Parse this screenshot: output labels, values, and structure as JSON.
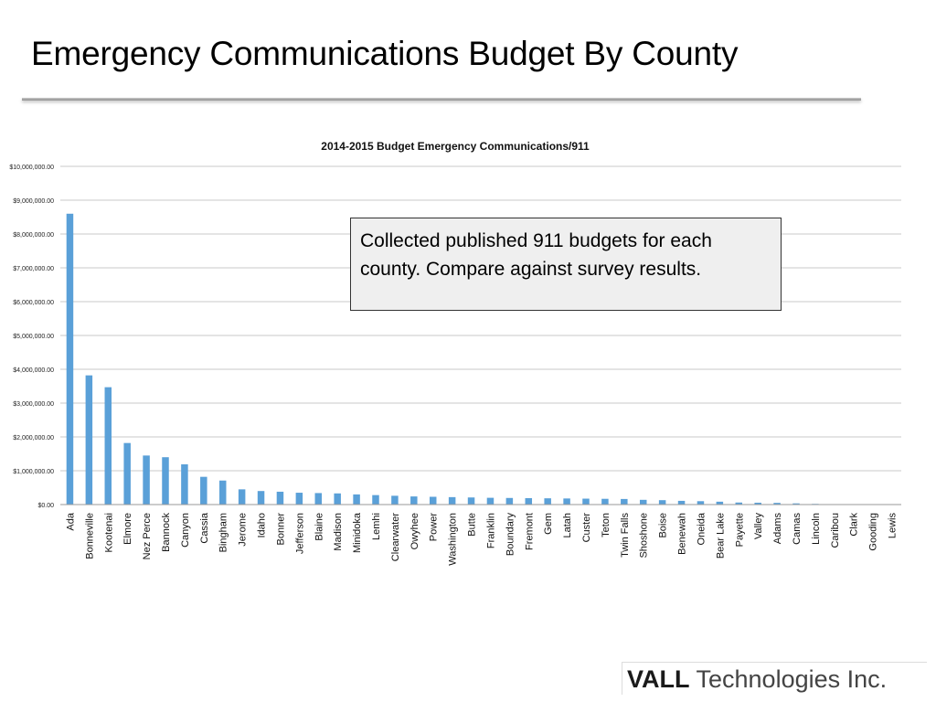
{
  "slide": {
    "title": "Emergency Communications Budget By County",
    "callout": "Collected published 911 budgets for each county. Compare against survey results.",
    "logo_bold": "VALL",
    "logo_rest": " Technologies Inc."
  },
  "colors": {
    "bar": "#5aa0d8",
    "grid": "#c8c8c8",
    "axis": "#9a9a9a"
  },
  "chart_data": {
    "type": "bar",
    "title": "2014-2015 Budget Emergency Communications/911",
    "xlabel": "",
    "ylabel": "",
    "ylim": [
      0,
      10000000
    ],
    "grid": true,
    "yticks": [
      {
        "value": 0,
        "label": "$0.00"
      },
      {
        "value": 1000000,
        "label": "$1,000,000.00"
      },
      {
        "value": 2000000,
        "label": "$2,000,000.00"
      },
      {
        "value": 3000000,
        "label": "$3,000,000.00"
      },
      {
        "value": 4000000,
        "label": "$4,000,000.00"
      },
      {
        "value": 5000000,
        "label": "$5,000,000.00"
      },
      {
        "value": 6000000,
        "label": "$6,000,000.00"
      },
      {
        "value": 7000000,
        "label": "$7,000,000.00"
      },
      {
        "value": 8000000,
        "label": "$8,000,000.00"
      },
      {
        "value": 9000000,
        "label": "$9,000,000.00"
      },
      {
        "value": 10000000,
        "label": "$10,000,000.00"
      }
    ],
    "categories": [
      "Ada",
      "Bonneville",
      "Kootenai",
      "Elmore",
      "Nez Perce",
      "Bannock",
      "Canyon",
      "Cassia",
      "Bingham",
      "Jerome",
      "Idaho",
      "Bonner",
      "Jefferson",
      "Blaine",
      "Madison",
      "Minidoka",
      "Lemhi",
      "Clearwater",
      "Owyhee",
      "Power",
      "Washington",
      "Butte",
      "Franklin",
      "Boundary",
      "Fremont",
      "Gem",
      "Latah",
      "Custer",
      "Teton",
      "Twin Falls",
      "Shoshone",
      "Boise",
      "Benewah",
      "Oneida",
      "Bear Lake",
      "Payette",
      "Valley",
      "Adams",
      "Camas",
      "Lincoln",
      "Caribou",
      "Clark",
      "Gooding",
      "Lewis"
    ],
    "values": [
      8600000,
      3820000,
      3470000,
      1820000,
      1450000,
      1400000,
      1190000,
      820000,
      710000,
      450000,
      400000,
      380000,
      350000,
      340000,
      330000,
      300000,
      280000,
      260000,
      240000,
      230000,
      220000,
      210000,
      200000,
      195000,
      190000,
      185000,
      180000,
      175000,
      170000,
      165000,
      140000,
      130000,
      110000,
      100000,
      85000,
      60000,
      55000,
      50000,
      35000,
      20000,
      0,
      0,
      0,
      0
    ]
  }
}
